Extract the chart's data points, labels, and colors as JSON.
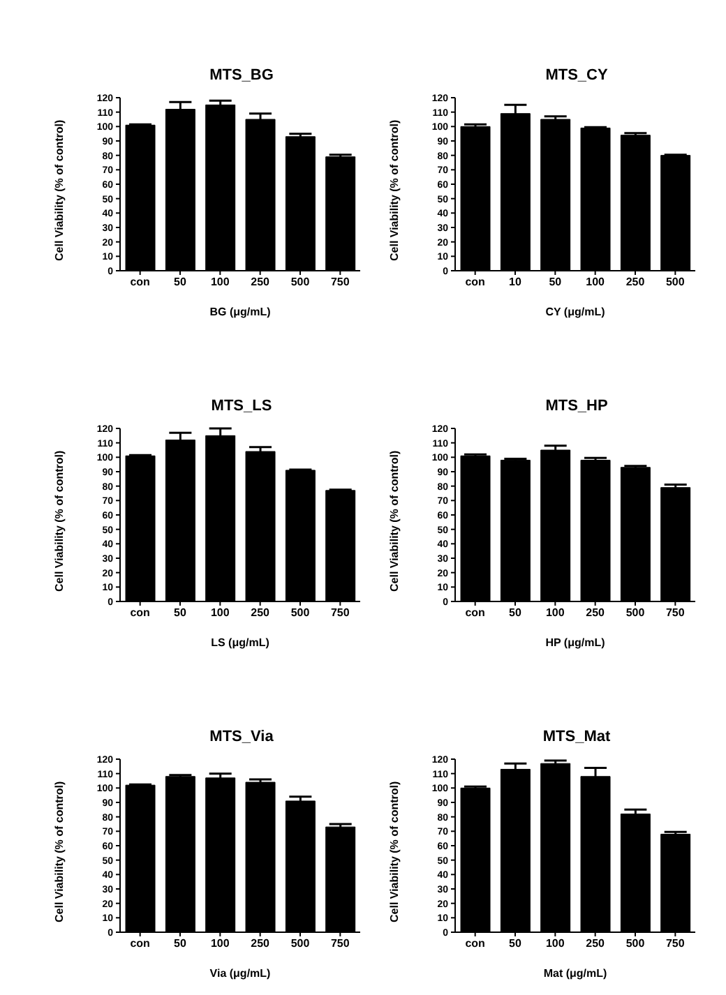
{
  "chart_data": [
    {
      "type": "bar",
      "title": "MTS_BG",
      "xlabel": "BG (μg/mL)",
      "ylabel": "Cell Viability (% of control)",
      "categories": [
        "con",
        "50",
        "100",
        "250",
        "500",
        "750"
      ],
      "values": [
        101,
        112,
        115,
        105,
        93,
        79
      ],
      "errors": [
        0.5,
        5,
        3,
        4,
        2,
        1.5
      ],
      "color": "#000000",
      "ylim": [
        0,
        120
      ],
      "yticks": [
        0,
        10,
        20,
        30,
        40,
        50,
        60,
        70,
        80,
        90,
        100,
        110,
        120
      ]
    },
    {
      "type": "bar",
      "title": "MTS_CY",
      "xlabel": "CY (μg/mL)",
      "ylabel": "Cell Viability (% of control)",
      "categories": [
        "con",
        "10",
        "50",
        "100",
        "250",
        "500"
      ],
      "values": [
        100,
        109,
        105,
        99,
        94,
        80
      ],
      "errors": [
        1.5,
        6,
        2,
        0.5,
        1.5,
        0.5
      ],
      "color": "#000000",
      "ylim": [
        0,
        120
      ],
      "yticks": [
        0,
        10,
        20,
        30,
        40,
        50,
        60,
        70,
        80,
        90,
        100,
        110,
        120
      ]
    },
    {
      "type": "bar",
      "title": "MTS_LS",
      "xlabel": "LS (μg/mL)",
      "ylabel": "Cell Viability (% of control)",
      "categories": [
        "con",
        "50",
        "100",
        "250",
        "500",
        "750"
      ],
      "values": [
        101,
        112,
        115,
        104,
        91,
        77
      ],
      "errors": [
        0.5,
        5,
        5,
        3,
        0.5,
        0.5
      ],
      "color": "#000000",
      "ylim": [
        0,
        120
      ],
      "yticks": [
        0,
        10,
        20,
        30,
        40,
        50,
        60,
        70,
        80,
        90,
        100,
        110,
        120
      ]
    },
    {
      "type": "bar",
      "title": "MTS_HP",
      "xlabel": "HP (μg/mL)",
      "ylabel": "Cell Viability (% of control)",
      "categories": [
        "con",
        "50",
        "100",
        "250",
        "500",
        "750"
      ],
      "values": [
        101,
        98,
        105,
        98,
        93,
        79
      ],
      "errors": [
        1,
        1,
        3,
        1.5,
        1,
        2
      ],
      "color": "#000000",
      "ylim": [
        0,
        120
      ],
      "yticks": [
        0,
        10,
        20,
        30,
        40,
        50,
        60,
        70,
        80,
        90,
        100,
        110,
        120
      ]
    },
    {
      "type": "bar",
      "title": "MTS_Via",
      "xlabel": "Via (μg/mL)",
      "ylabel": "Cell Viability (% of control)",
      "categories": [
        "con",
        "50",
        "100",
        "250",
        "500",
        "750"
      ],
      "values": [
        102,
        108,
        107,
        104,
        91,
        73
      ],
      "errors": [
        0.5,
        1,
        3,
        2,
        3,
        2
      ],
      "color": "#000000",
      "ylim": [
        0,
        120
      ],
      "yticks": [
        0,
        10,
        20,
        30,
        40,
        50,
        60,
        70,
        80,
        90,
        100,
        110,
        120
      ]
    },
    {
      "type": "bar",
      "title": "MTS_Mat",
      "xlabel": "Mat (μg/mL)",
      "ylabel": "Cell Viability (% of control)",
      "categories": [
        "con",
        "50",
        "100",
        "250",
        "500",
        "750"
      ],
      "values": [
        100,
        113,
        117,
        108,
        82,
        68
      ],
      "errors": [
        1,
        4,
        2,
        6,
        3,
        1.5
      ],
      "color": "#000000",
      "ylim": [
        0,
        120
      ],
      "yticks": [
        0,
        10,
        20,
        30,
        40,
        50,
        60,
        70,
        80,
        90,
        100,
        110,
        120
      ]
    }
  ]
}
